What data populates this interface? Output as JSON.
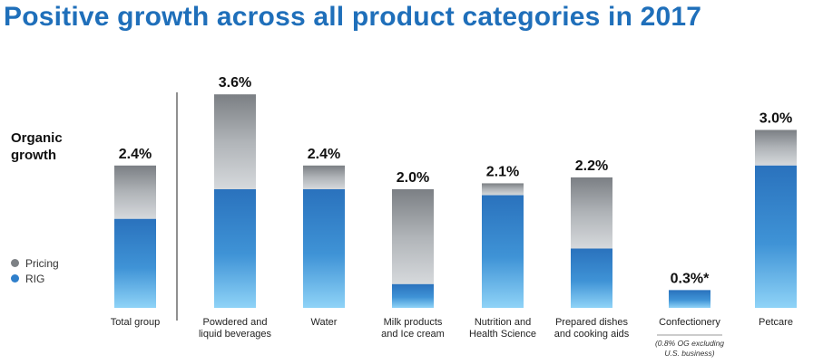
{
  "title": "Positive growth across all product categories in 2017",
  "chart_data": {
    "type": "bar",
    "stacked": true,
    "title": "Positive growth across all product categories in 2017",
    "ylabel": "Organic growth",
    "ylim": [
      0,
      4.0
    ],
    "categories": [
      "Total group",
      "Powdered and liquid beverages",
      "Water",
      "Milk products and Ice cream",
      "Nutrition and Health Science",
      "Prepared dishes and cooking aids",
      "Confectionery",
      "Petcare"
    ],
    "category_lines": [
      [
        "Total group"
      ],
      [
        "Powdered and",
        "liquid beverages"
      ],
      [
        "Water"
      ],
      [
        "Milk products",
        "and Ice cream"
      ],
      [
        "Nutrition and",
        "Health Science"
      ],
      [
        "Prepared dishes",
        "and cooking aids"
      ],
      [
        "Confectionery"
      ],
      [
        "Petcare"
      ]
    ],
    "totals": [
      "2.4%",
      "3.6%",
      "2.4%",
      "2.0%",
      "2.1%",
      "2.2%",
      "0.3%*",
      "3.0%"
    ],
    "series": [
      {
        "name": "RIG",
        "color": "#2f7fcb",
        "values": [
          1.5,
          2.0,
          2.0,
          0.4,
          1.9,
          1.0,
          0.3,
          2.4
        ]
      },
      {
        "name": "Pricing",
        "color": "#9a9ea3",
        "values": [
          0.9,
          1.6,
          0.4,
          1.6,
          0.2,
          1.2,
          0.0,
          0.6
        ]
      }
    ],
    "footnote_lines": [
      "(0.8% OG excluding",
      "U.S. business)"
    ],
    "legend_position": "left"
  }
}
